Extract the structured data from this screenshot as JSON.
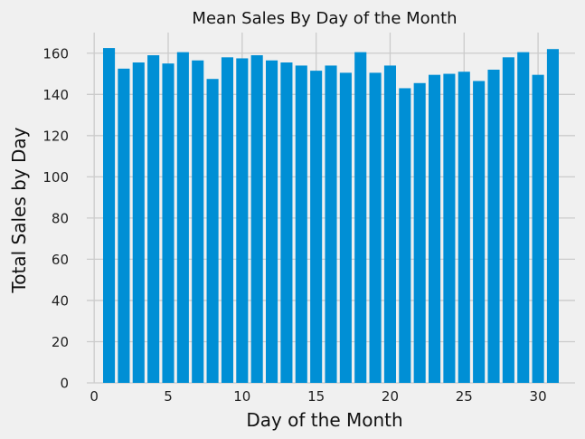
{
  "chart_data": {
    "type": "bar",
    "title": "Mean Sales By Day of the Month",
    "xlabel": "Day of the Month",
    "ylabel": "Total Sales by Day",
    "x": [
      1,
      2,
      3,
      4,
      5,
      6,
      7,
      8,
      9,
      10,
      11,
      12,
      13,
      14,
      15,
      16,
      17,
      18,
      19,
      20,
      21,
      22,
      23,
      24,
      25,
      26,
      27,
      28,
      29,
      30,
      31
    ],
    "values": [
      162.5,
      152.5,
      155.5,
      159,
      155,
      160.5,
      156.5,
      147.5,
      158,
      157.5,
      159,
      156.5,
      155.5,
      154,
      151.5,
      154,
      150.5,
      160.5,
      150.5,
      154,
      143,
      145.5,
      149.5,
      150,
      151,
      146.5,
      152,
      158,
      160.5,
      149.5,
      162
    ],
    "xlim": [
      -0.5,
      32.5
    ],
    "ylim": [
      0,
      170
    ],
    "xticks": [
      0,
      5,
      10,
      15,
      20,
      25,
      30
    ],
    "yticks": [
      0,
      20,
      40,
      60,
      80,
      100,
      120,
      140,
      160
    ],
    "grid": true,
    "bar_color": "#008fd5",
    "background": "#f0f0f0"
  }
}
